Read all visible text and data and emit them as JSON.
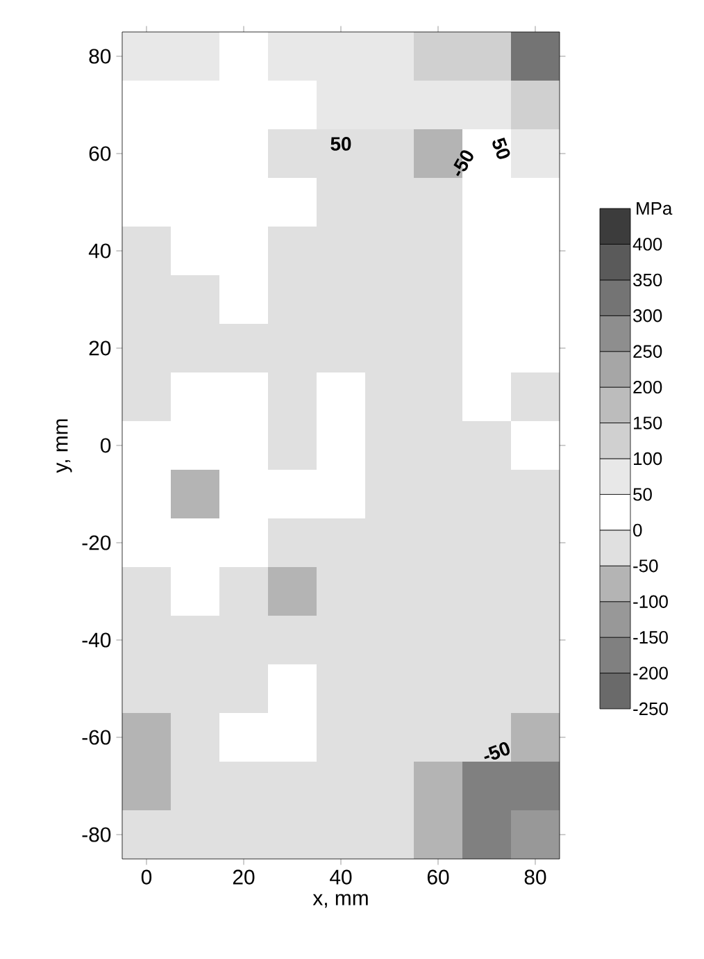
{
  "chart_data": {
    "type": "heatmap",
    "xlabel": "x, mm",
    "ylabel": "y, mm",
    "clabel": "MPa",
    "categories": [
      "0",
      null,
      "20",
      null,
      "40",
      null,
      "60",
      null,
      "80"
    ],
    "y_categories": [
      "80",
      null,
      "60",
      null,
      "40",
      null,
      "20",
      null,
      "0",
      null,
      "-20",
      null,
      "-40",
      null,
      "-60",
      null,
      "-80"
    ],
    "cells": [
      [
        75,
        75,
        25,
        75,
        75,
        75,
        125,
        125,
        300
      ],
      [
        25,
        25,
        25,
        25,
        75,
        75,
        75,
        75,
        125
      ],
      [
        25,
        25,
        25,
        -25,
        -25,
        -25,
        -75,
        25,
        75
      ],
      [
        25,
        25,
        25,
        25,
        -25,
        -25,
        -25,
        25,
        25
      ],
      [
        -25,
        25,
        25,
        -25,
        -25,
        -25,
        -25,
        25,
        25
      ],
      [
        -25,
        -25,
        25,
        -25,
        -25,
        -25,
        -25,
        25,
        25
      ],
      [
        -25,
        -25,
        -25,
        -25,
        -25,
        -25,
        -25,
        25,
        25
      ],
      [
        -25,
        25,
        25,
        -25,
        25,
        -25,
        -25,
        25,
        -25
      ],
      [
        25,
        25,
        25,
        -25,
        25,
        -25,
        -25,
        -25,
        25
      ],
      [
        25,
        -75,
        25,
        25,
        25,
        -25,
        -25,
        -25,
        -25
      ],
      [
        25,
        25,
        25,
        -25,
        -25,
        -25,
        -25,
        -25,
        -25
      ],
      [
        -25,
        25,
        -25,
        -75,
        -25,
        -25,
        -25,
        -25,
        -25
      ],
      [
        -25,
        -25,
        -25,
        -25,
        -25,
        -25,
        -25,
        -25,
        -25
      ],
      [
        -25,
        -25,
        -25,
        25,
        -25,
        -25,
        -25,
        -25,
        -25
      ],
      [
        -75,
        -25,
        25,
        25,
        -25,
        -25,
        -25,
        -25,
        -75
      ],
      [
        -75,
        -25,
        -25,
        -25,
        -25,
        -25,
        -75,
        -175,
        -175
      ],
      [
        -25,
        -25,
        -25,
        -25,
        -25,
        -25,
        -75,
        -175,
        -125
      ]
    ],
    "clim": [
      -250,
      450
    ],
    "cticks": [
      -250,
      -200,
      -150,
      -100,
      -50,
      0,
      50,
      100,
      150,
      200,
      250,
      300,
      350,
      400
    ],
    "annotations": [
      "50",
      "-50",
      "50",
      "-50"
    ]
  }
}
